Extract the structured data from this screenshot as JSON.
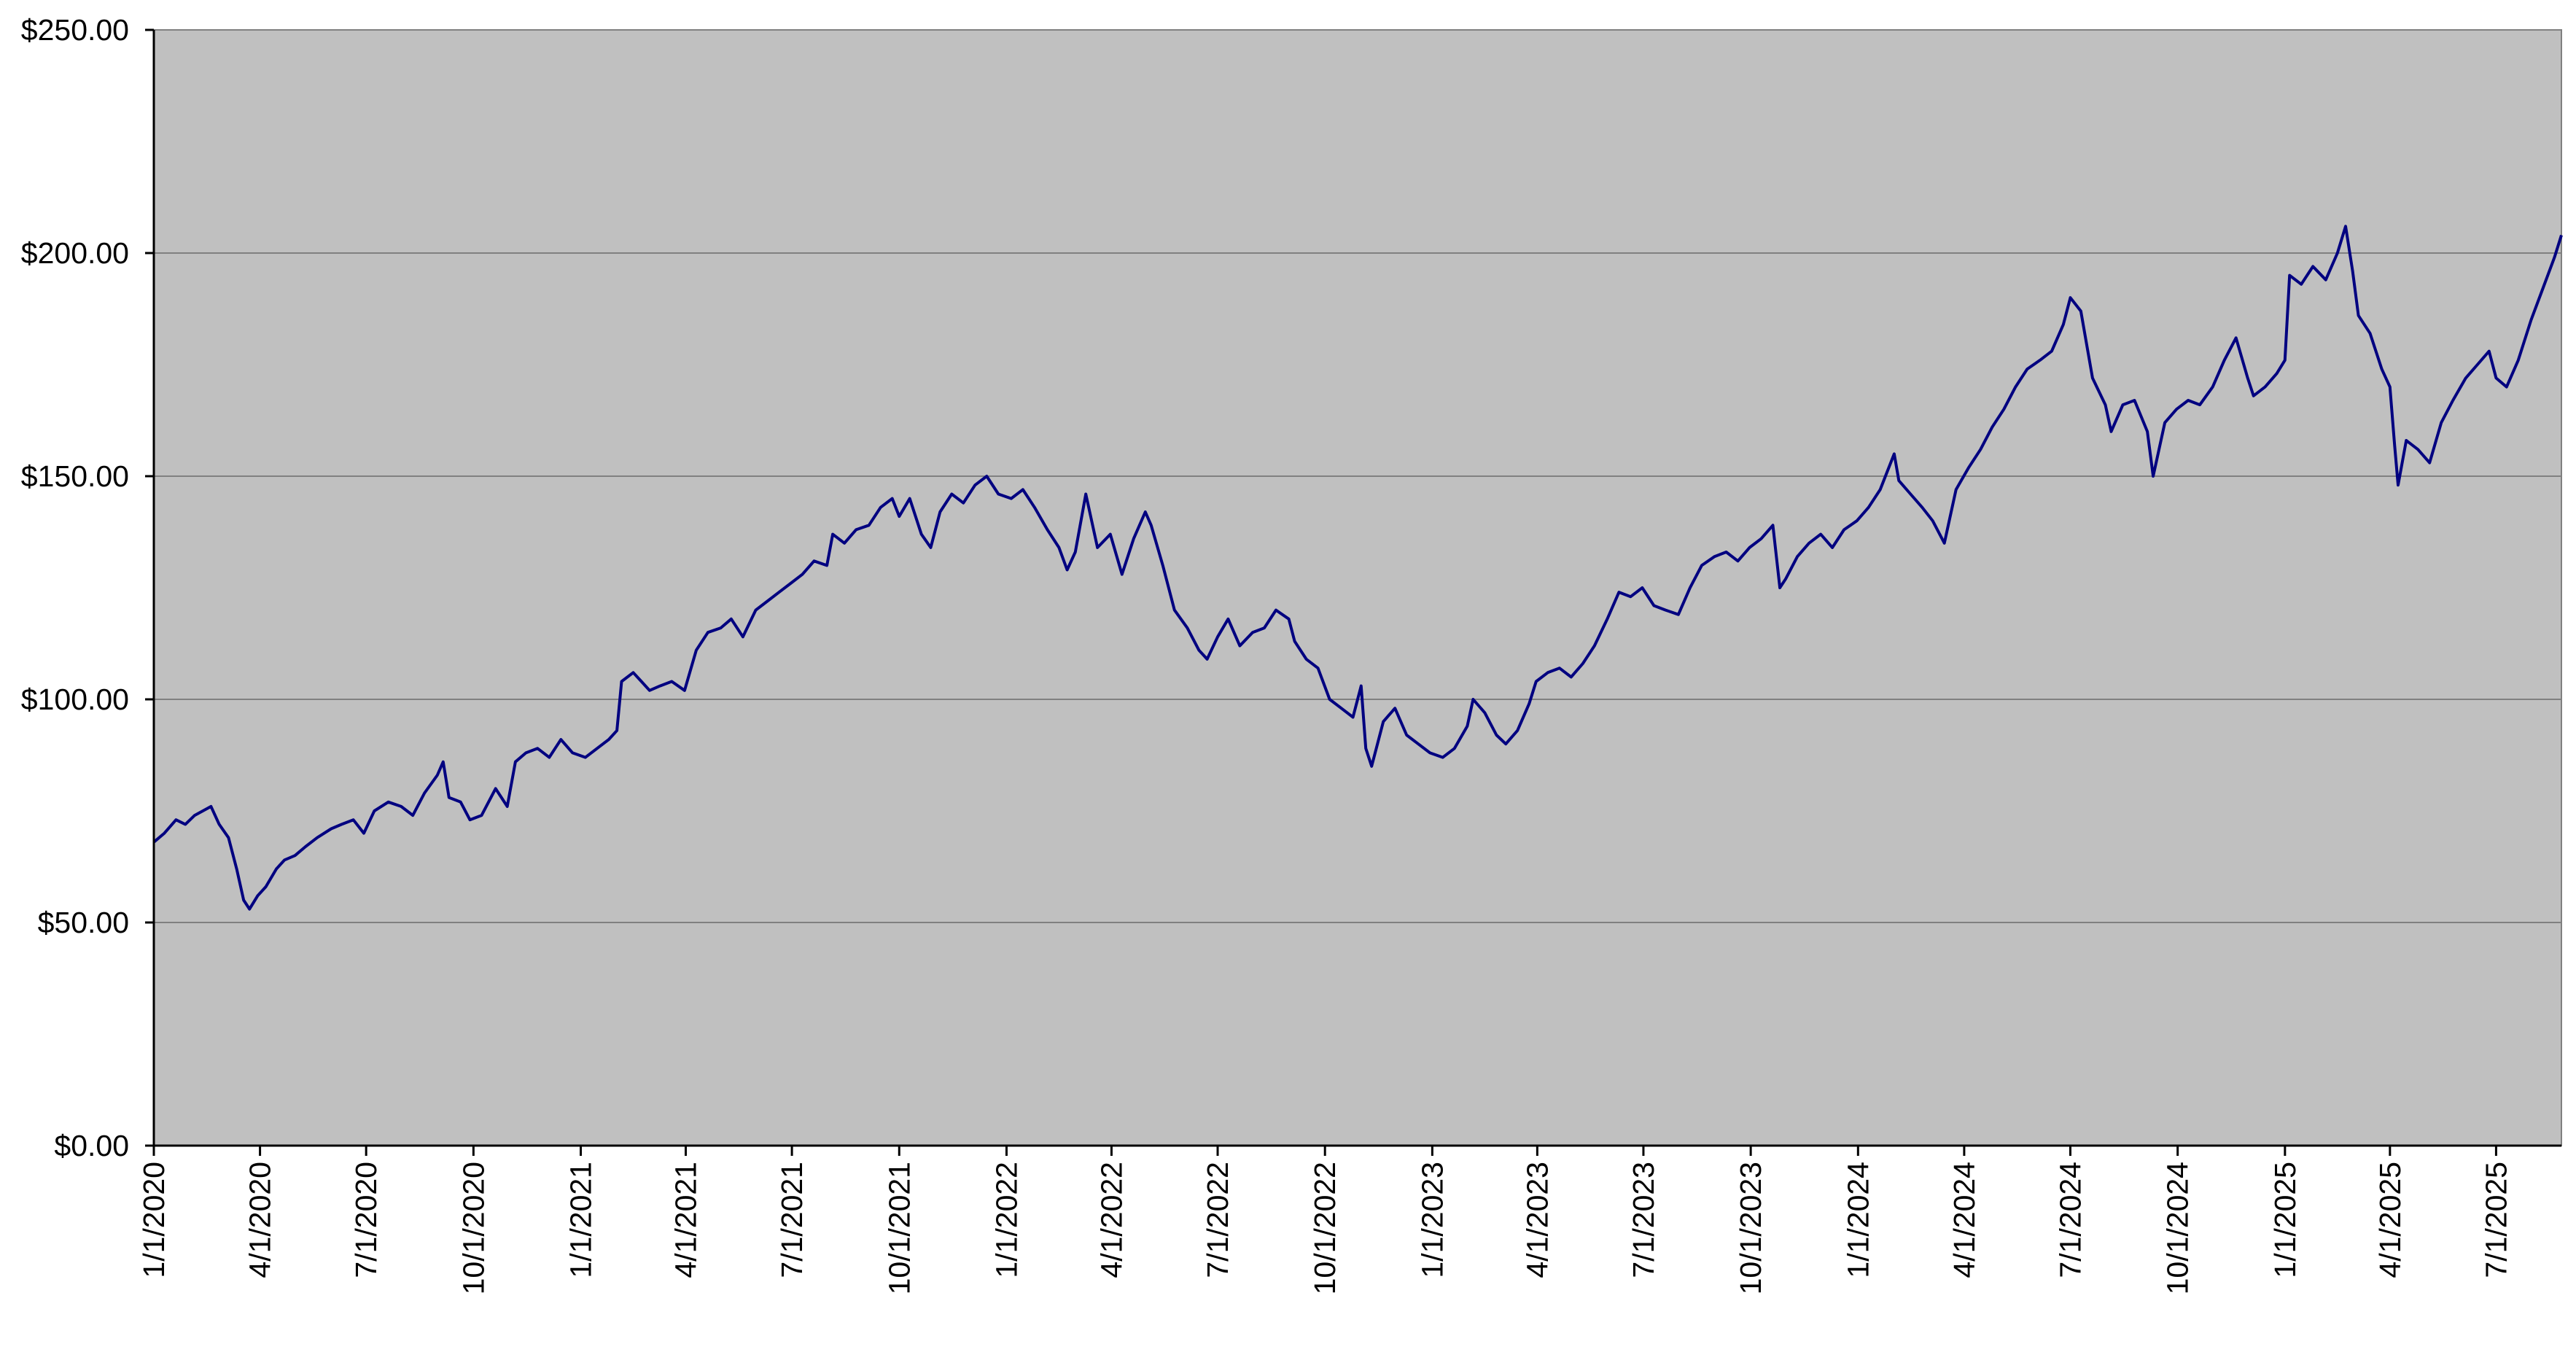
{
  "chart_data": {
    "type": "line",
    "title": "",
    "xlabel": "",
    "ylabel": "",
    "ylim": [
      0,
      250
    ],
    "y_ticks": [
      0,
      50,
      100,
      150,
      200,
      250
    ],
    "y_tick_labels": [
      "$0.00",
      "$50.00",
      "$100.00",
      "$150.00",
      "$200.00",
      "$250.00"
    ],
    "x_ticks": [
      "2020-01-01",
      "2020-04-01",
      "2020-07-01",
      "2020-10-01",
      "2021-01-01",
      "2021-04-01",
      "2021-07-01",
      "2021-10-01",
      "2022-01-01",
      "2022-04-01",
      "2022-07-01",
      "2022-10-01",
      "2023-01-01",
      "2023-04-01",
      "2023-07-01",
      "2023-10-01",
      "2024-01-01",
      "2024-04-01",
      "2024-07-01",
      "2024-10-01",
      "2025-01-01",
      "2025-04-01",
      "2025-07-01"
    ],
    "x_tick_labels": [
      "1/1/2020",
      "4/1/2020",
      "7/1/2020",
      "10/1/2020",
      "1/1/2021",
      "4/1/2021",
      "7/1/2021",
      "10/1/2021",
      "1/1/2022",
      "4/1/2022",
      "7/1/2022",
      "10/1/2022",
      "1/1/2023",
      "4/1/2023",
      "7/1/2023",
      "10/1/2023",
      "1/1/2024",
      "4/1/2024",
      "7/1/2024",
      "10/1/2024",
      "1/1/2025",
      "4/1/2025",
      "7/1/2025"
    ],
    "xlim": [
      "2020-01-01",
      "2025-08-26"
    ],
    "grid": "horizontal",
    "plot_background": "#c0c0c0",
    "line_color": "#000080",
    "series": [
      {
        "name": "",
        "points": [
          [
            "2020-01-01",
            68
          ],
          [
            "2020-01-10",
            70
          ],
          [
            "2020-01-20",
            73
          ],
          [
            "2020-01-28",
            72
          ],
          [
            "2020-02-05",
            74
          ],
          [
            "2020-02-12",
            75
          ],
          [
            "2020-02-19",
            76
          ],
          [
            "2020-02-26",
            72
          ],
          [
            "2020-03-05",
            69
          ],
          [
            "2020-03-12",
            62
          ],
          [
            "2020-03-18",
            55
          ],
          [
            "2020-03-23",
            53
          ],
          [
            "2020-03-30",
            56
          ],
          [
            "2020-04-06",
            58
          ],
          [
            "2020-04-15",
            62
          ],
          [
            "2020-04-22",
            64
          ],
          [
            "2020-05-01",
            65
          ],
          [
            "2020-05-10",
            67
          ],
          [
            "2020-05-20",
            69
          ],
          [
            "2020-06-01",
            71
          ],
          [
            "2020-06-10",
            72
          ],
          [
            "2020-06-20",
            73
          ],
          [
            "2020-06-29",
            70
          ],
          [
            "2020-07-08",
            75
          ],
          [
            "2020-07-20",
            77
          ],
          [
            "2020-07-31",
            76
          ],
          [
            "2020-08-10",
            74
          ],
          [
            "2020-08-20",
            79
          ],
          [
            "2020-08-31",
            83
          ],
          [
            "2020-09-05",
            86
          ],
          [
            "2020-09-10",
            78
          ],
          [
            "2020-09-20",
            77
          ],
          [
            "2020-09-28",
            73
          ],
          [
            "2020-10-08",
            74
          ],
          [
            "2020-10-20",
            80
          ],
          [
            "2020-10-30",
            76
          ],
          [
            "2020-11-06",
            86
          ],
          [
            "2020-11-15",
            88
          ],
          [
            "2020-11-25",
            89
          ],
          [
            "2020-12-05",
            87
          ],
          [
            "2020-12-15",
            91
          ],
          [
            "2020-12-25",
            88
          ],
          [
            "2021-01-05",
            87
          ],
          [
            "2021-01-15",
            89
          ],
          [
            "2021-01-25",
            91
          ],
          [
            "2021-02-01",
            93
          ],
          [
            "2021-02-05",
            104
          ],
          [
            "2021-02-15",
            106
          ],
          [
            "2021-02-22",
            104
          ],
          [
            "2021-03-01",
            102
          ],
          [
            "2021-03-10",
            103
          ],
          [
            "2021-03-20",
            104
          ],
          [
            "2021-03-31",
            102
          ],
          [
            "2021-04-10",
            111
          ],
          [
            "2021-04-20",
            115
          ],
          [
            "2021-05-01",
            116
          ],
          [
            "2021-05-10",
            118
          ],
          [
            "2021-05-20",
            114
          ],
          [
            "2021-05-31",
            120
          ],
          [
            "2021-06-10",
            122
          ],
          [
            "2021-06-20",
            124
          ],
          [
            "2021-06-30",
            126
          ],
          [
            "2021-07-10",
            128
          ],
          [
            "2021-07-20",
            131
          ],
          [
            "2021-07-31",
            130
          ],
          [
            "2021-08-05",
            137
          ],
          [
            "2021-08-15",
            135
          ],
          [
            "2021-08-25",
            138
          ],
          [
            "2021-09-05",
            139
          ],
          [
            "2021-09-15",
            143
          ],
          [
            "2021-09-25",
            145
          ],
          [
            "2021-10-01",
            141
          ],
          [
            "2021-10-10",
            145
          ],
          [
            "2021-10-20",
            137
          ],
          [
            "2021-10-28",
            134
          ],
          [
            "2021-11-05",
            142
          ],
          [
            "2021-11-15",
            146
          ],
          [
            "2021-11-25",
            144
          ],
          [
            "2021-12-05",
            148
          ],
          [
            "2021-12-15",
            150
          ],
          [
            "2021-12-25",
            146
          ],
          [
            "2022-01-05",
            145
          ],
          [
            "2022-01-15",
            147
          ],
          [
            "2022-01-25",
            143
          ],
          [
            "2022-02-05",
            138
          ],
          [
            "2022-02-15",
            134
          ],
          [
            "2022-02-22",
            129
          ],
          [
            "2022-03-01",
            133
          ],
          [
            "2022-03-10",
            146
          ],
          [
            "2022-03-20",
            134
          ],
          [
            "2022-03-31",
            137
          ],
          [
            "2022-04-10",
            128
          ],
          [
            "2022-04-20",
            136
          ],
          [
            "2022-04-30",
            142
          ],
          [
            "2022-05-05",
            139
          ],
          [
            "2022-05-15",
            130
          ],
          [
            "2022-05-25",
            120
          ],
          [
            "2022-06-05",
            116
          ],
          [
            "2022-06-15",
            111
          ],
          [
            "2022-06-22",
            109
          ],
          [
            "2022-07-01",
            114
          ],
          [
            "2022-07-10",
            118
          ],
          [
            "2022-07-20",
            112
          ],
          [
            "2022-07-31",
            115
          ],
          [
            "2022-08-10",
            116
          ],
          [
            "2022-08-20",
            120
          ],
          [
            "2022-08-31",
            118
          ],
          [
            "2022-09-05",
            113
          ],
          [
            "2022-09-15",
            109
          ],
          [
            "2022-09-25",
            107
          ],
          [
            "2022-10-05",
            100
          ],
          [
            "2022-10-15",
            98
          ],
          [
            "2022-10-25",
            96
          ],
          [
            "2022-11-01",
            103
          ],
          [
            "2022-11-05",
            89
          ],
          [
            "2022-11-10",
            85
          ],
          [
            "2022-11-20",
            95
          ],
          [
            "2022-11-30",
            98
          ],
          [
            "2022-12-10",
            92
          ],
          [
            "2022-12-20",
            90
          ],
          [
            "2022-12-30",
            88
          ],
          [
            "2023-01-10",
            87
          ],
          [
            "2023-01-20",
            89
          ],
          [
            "2023-01-31",
            94
          ],
          [
            "2023-02-05",
            100
          ],
          [
            "2023-02-15",
            97
          ],
          [
            "2023-02-25",
            92
          ],
          [
            "2023-03-05",
            90
          ],
          [
            "2023-03-15",
            93
          ],
          [
            "2023-03-25",
            99
          ],
          [
            "2023-03-31",
            104
          ],
          [
            "2023-04-10",
            106
          ],
          [
            "2023-04-20",
            107
          ],
          [
            "2023-04-30",
            105
          ],
          [
            "2023-05-10",
            108
          ],
          [
            "2023-05-20",
            112
          ],
          [
            "2023-05-31",
            118
          ],
          [
            "2023-06-10",
            124
          ],
          [
            "2023-06-20",
            123
          ],
          [
            "2023-06-30",
            125
          ],
          [
            "2023-07-10",
            121
          ],
          [
            "2023-07-20",
            120
          ],
          [
            "2023-07-31",
            119
          ],
          [
            "2023-08-10",
            125
          ],
          [
            "2023-08-20",
            130
          ],
          [
            "2023-08-31",
            132
          ],
          [
            "2023-09-10",
            133
          ],
          [
            "2023-09-20",
            131
          ],
          [
            "2023-09-30",
            134
          ],
          [
            "2023-10-10",
            136
          ],
          [
            "2023-10-20",
            139
          ],
          [
            "2023-10-26",
            125
          ],
          [
            "2023-10-31",
            127
          ],
          [
            "2023-11-10",
            132
          ],
          [
            "2023-11-20",
            135
          ],
          [
            "2023-11-30",
            137
          ],
          [
            "2023-12-10",
            134
          ],
          [
            "2023-12-20",
            138
          ],
          [
            "2023-12-31",
            140
          ],
          [
            "2024-01-10",
            143
          ],
          [
            "2024-01-20",
            147
          ],
          [
            "2024-01-26",
            151
          ],
          [
            "2024-02-01",
            155
          ],
          [
            "2024-02-05",
            149
          ],
          [
            "2024-02-15",
            146
          ],
          [
            "2024-02-25",
            143
          ],
          [
            "2024-03-05",
            140
          ],
          [
            "2024-03-15",
            135
          ],
          [
            "2024-03-25",
            147
          ],
          [
            "2024-04-05",
            152
          ],
          [
            "2024-04-15",
            156
          ],
          [
            "2024-04-25",
            161
          ],
          [
            "2024-05-05",
            165
          ],
          [
            "2024-05-15",
            170
          ],
          [
            "2024-05-25",
            174
          ],
          [
            "2024-06-05",
            176
          ],
          [
            "2024-06-15",
            178
          ],
          [
            "2024-06-25",
            184
          ],
          [
            "2024-07-01",
            190
          ],
          [
            "2024-07-10",
            187
          ],
          [
            "2024-07-20",
            172
          ],
          [
            "2024-07-31",
            166
          ],
          [
            "2024-08-05",
            160
          ],
          [
            "2024-08-15",
            166
          ],
          [
            "2024-08-25",
            167
          ],
          [
            "2024-09-05",
            160
          ],
          [
            "2024-09-10",
            150
          ],
          [
            "2024-09-20",
            162
          ],
          [
            "2024-09-30",
            165
          ],
          [
            "2024-10-10",
            167
          ],
          [
            "2024-10-20",
            166
          ],
          [
            "2024-10-31",
            170
          ],
          [
            "2024-11-10",
            176
          ],
          [
            "2024-11-20",
            181
          ],
          [
            "2024-11-30",
            172
          ],
          [
            "2024-12-05",
            168
          ],
          [
            "2024-12-15",
            170
          ],
          [
            "2024-12-25",
            173
          ],
          [
            "2025-01-01",
            176
          ],
          [
            "2025-01-05",
            195
          ],
          [
            "2025-01-15",
            193
          ],
          [
            "2025-01-25",
            197
          ],
          [
            "2025-02-05",
            194
          ],
          [
            "2025-02-15",
            200
          ],
          [
            "2025-02-22",
            206
          ],
          [
            "2025-02-28",
            196
          ],
          [
            "2025-03-05",
            186
          ],
          [
            "2025-03-15",
            182
          ],
          [
            "2025-03-25",
            174
          ],
          [
            "2025-04-01",
            170
          ],
          [
            "2025-04-05",
            157
          ],
          [
            "2025-04-08",
            148
          ],
          [
            "2025-04-15",
            158
          ],
          [
            "2025-04-25",
            156
          ],
          [
            "2025-05-05",
            153
          ],
          [
            "2025-05-15",
            162
          ],
          [
            "2025-05-25",
            167
          ],
          [
            "2025-06-05",
            172
          ],
          [
            "2025-06-15",
            175
          ],
          [
            "2025-06-25",
            178
          ],
          [
            "2025-07-01",
            172
          ],
          [
            "2025-07-10",
            170
          ],
          [
            "2025-07-20",
            176
          ],
          [
            "2025-07-31",
            185
          ],
          [
            "2025-08-10",
            192
          ],
          [
            "2025-08-20",
            199
          ],
          [
            "2025-08-26",
            204
          ]
        ]
      }
    ]
  }
}
